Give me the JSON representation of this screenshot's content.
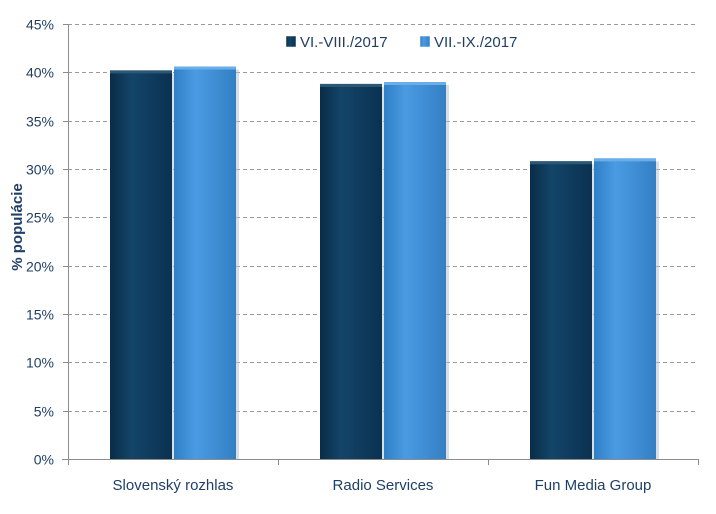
{
  "chart_data": {
    "type": "bar",
    "title": "",
    "xlabel": "",
    "ylabel": "% populácie",
    "ylim": [
      0,
      45
    ],
    "y_ticks": [
      "0%",
      "5%",
      "10%",
      "15%",
      "20%",
      "25%",
      "30%",
      "35%",
      "40%",
      "45%"
    ],
    "grid": true,
    "legend_position": "top-right",
    "categories": [
      "Slovenský rozhlas",
      "Radio Services",
      "Fun Media Group"
    ],
    "series": [
      {
        "name": "VI.-VIII./2017",
        "color": "#0f3a5c",
        "values": [
          40.2,
          38.8,
          30.8
        ]
      },
      {
        "name": "VII.-IX./2017",
        "color": "#3d8fd8",
        "values": [
          40.6,
          39.0,
          31.1
        ]
      }
    ]
  }
}
